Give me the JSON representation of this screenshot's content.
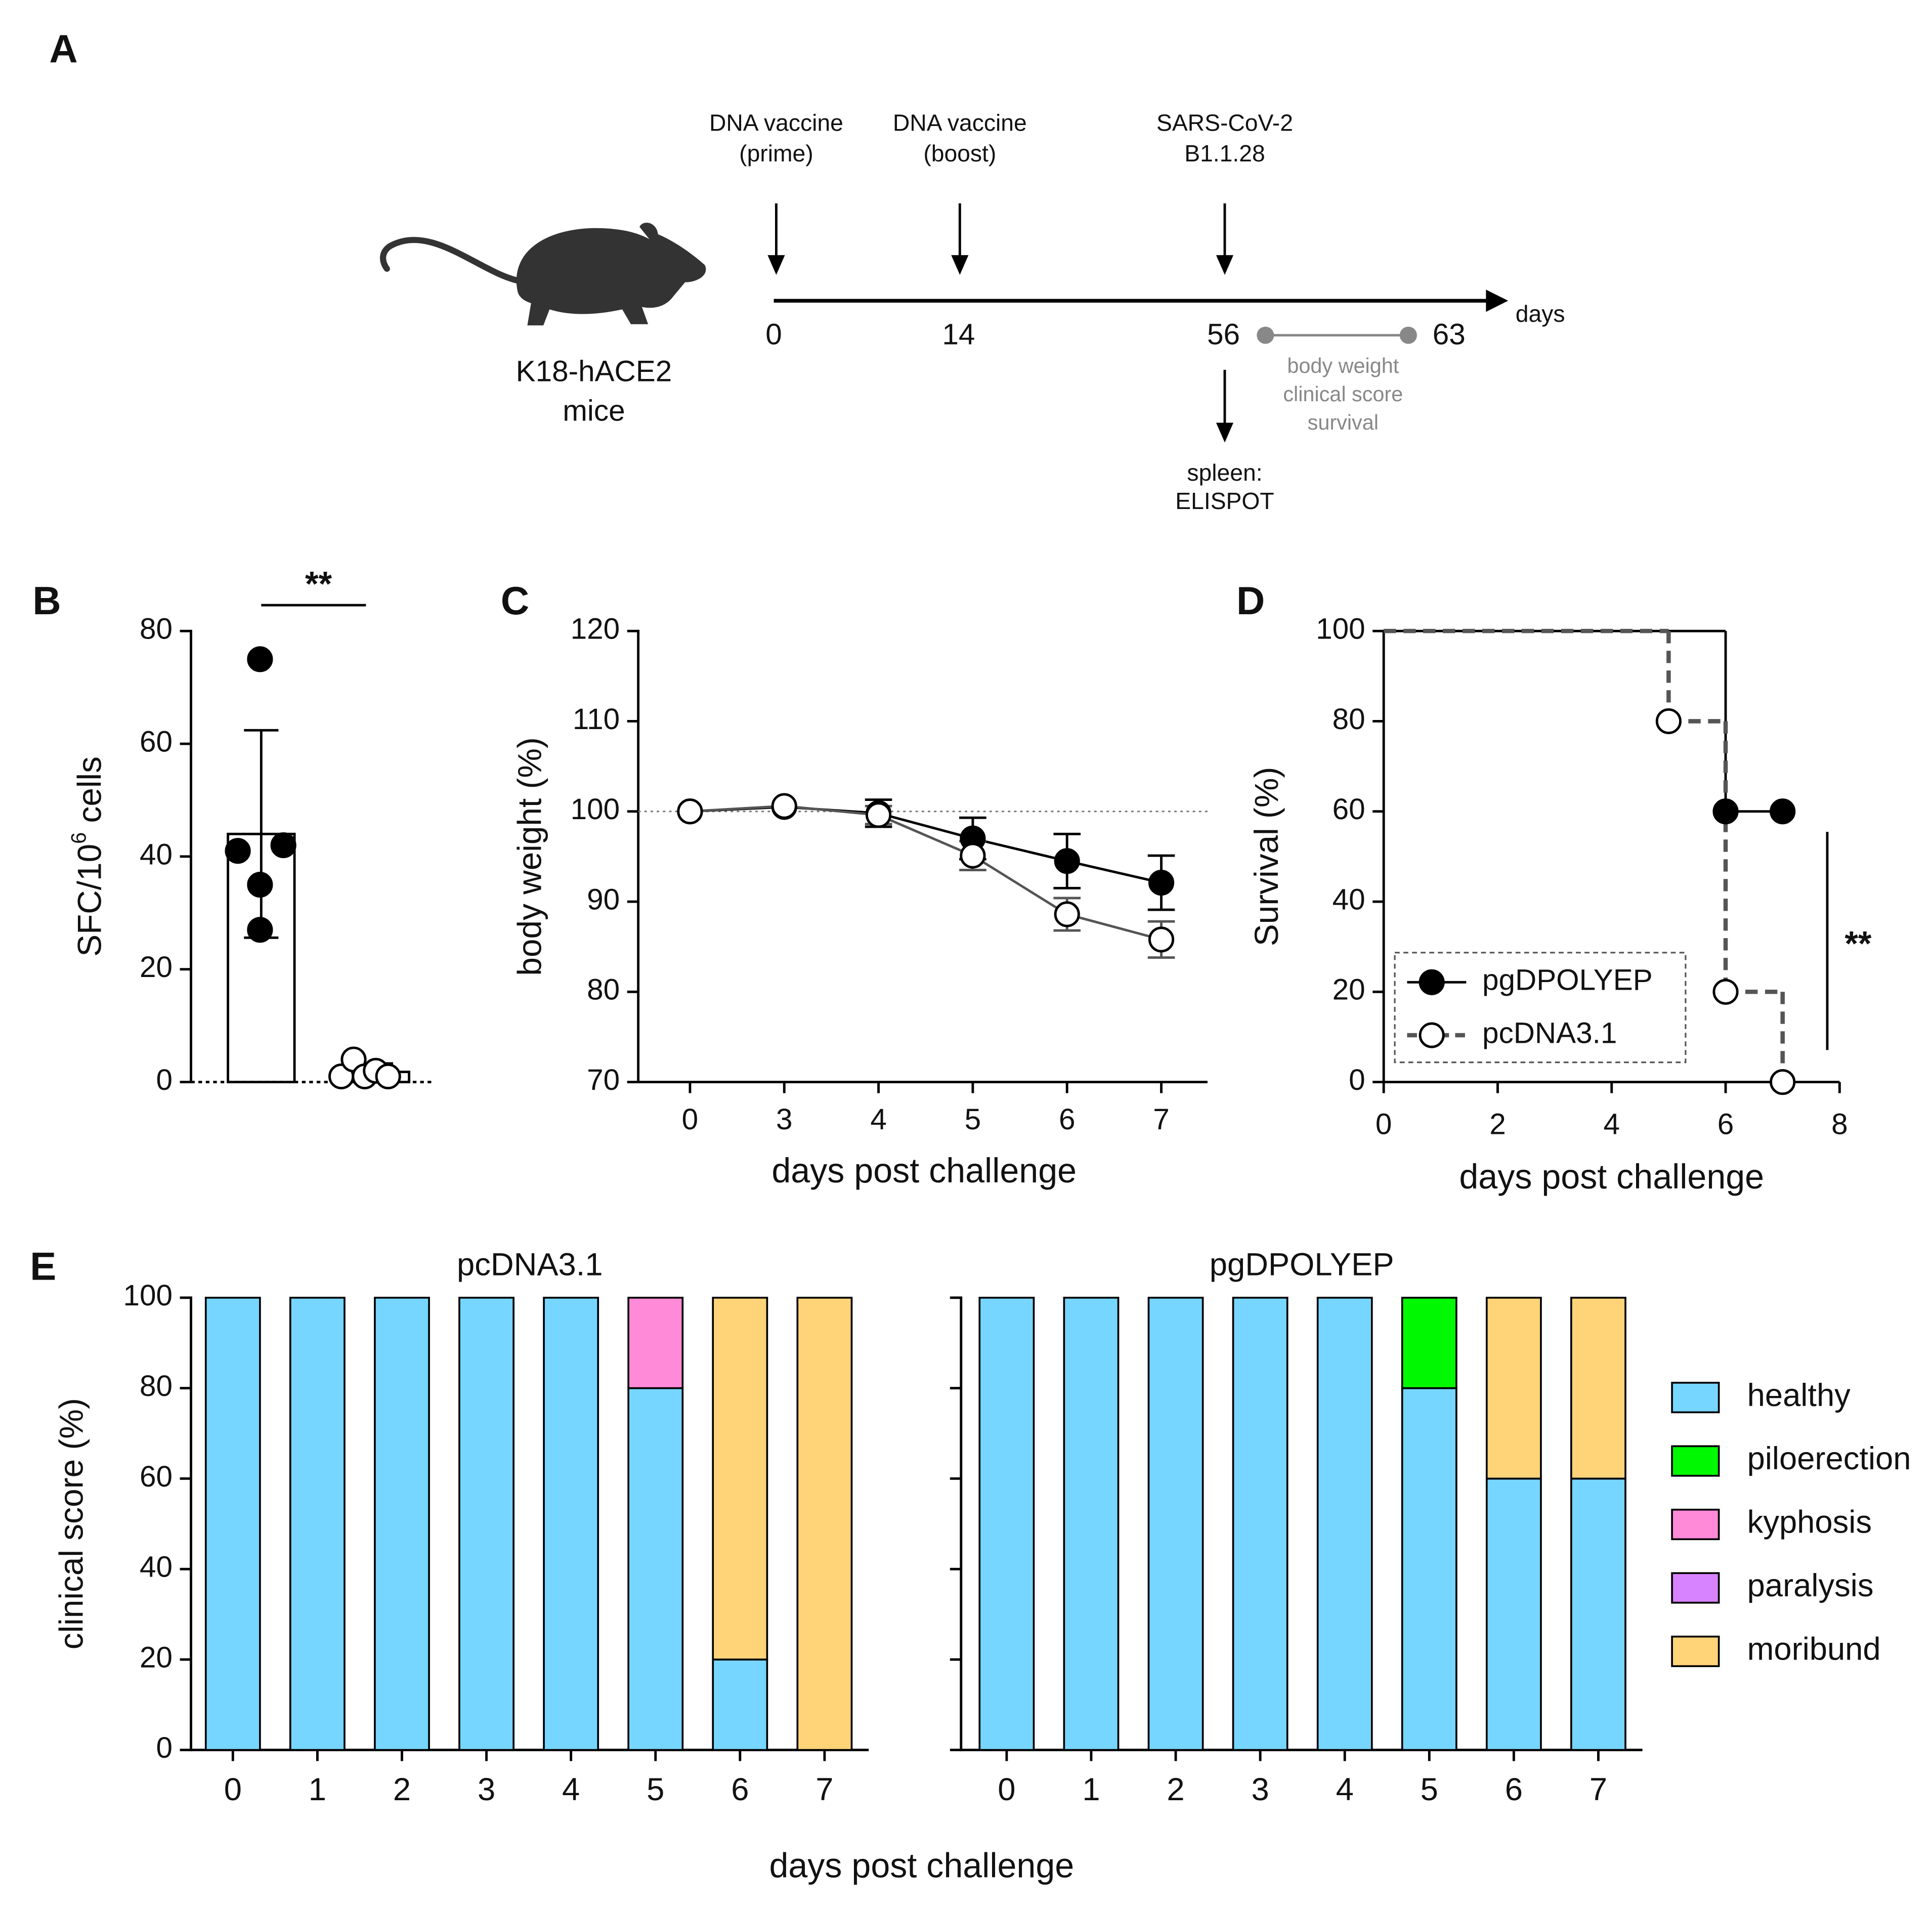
{
  "diagram": {
    "panel": "A",
    "events": [
      {
        "label": [
          "DNA vaccine",
          "(prime)"
        ]
      },
      {
        "label": [
          "DNA vaccine",
          "(boost)"
        ]
      },
      {
        "label": [
          "SARS-CoV-2",
          "B1.1.28"
        ]
      }
    ],
    "days": [
      0,
      14,
      56,
      63
    ],
    "axis_label": "days",
    "mouse_label": [
      "K18-hACE2",
      "mice"
    ],
    "monitoring": [
      "body weight",
      "clinical score",
      "survival"
    ],
    "endpoint": [
      "spleen:",
      "ELISPOT"
    ]
  },
  "chart_data": [
    {
      "panel": "B",
      "type": "bar",
      "ylabel": [
        "SFC/10",
        "6",
        " cells"
      ],
      "categories": [
        null,
        null
      ],
      "values": [
        44,
        1.8
      ],
      "errors": [
        18.4,
        1.5
      ],
      "points": [
        [
          41,
          75,
          35,
          27,
          42
        ],
        [
          1,
          4,
          1,
          2,
          1
        ]
      ],
      "point_colors": [
        "#000000",
        "#ffffff"
      ],
      "ylim": [
        0,
        80
      ],
      "yticks": [
        0,
        20,
        40,
        60,
        80
      ],
      "annotation": "**"
    },
    {
      "panel": "C",
      "type": "line",
      "xlabel": "days post challenge",
      "ylabel": "body weight (%)",
      "categories": [
        "0",
        "3",
        "4",
        "5",
        "6",
        "7"
      ],
      "series": [
        {
          "color": "#000000",
          "marker_fill": "#000000",
          "values": [
            100,
            100.5,
            99.8,
            97,
            94.5,
            92.1
          ],
          "errors": [
            0,
            0,
            1.5,
            2.3,
            3,
            3
          ]
        },
        {
          "color": "#555555",
          "marker_fill": "#ffffff",
          "values": [
            100,
            100.6,
            99.6,
            95.1,
            88.6,
            85.8
          ],
          "errors": [
            0,
            0,
            1,
            1.6,
            1.8,
            2
          ]
        }
      ],
      "ylim": [
        70,
        120
      ],
      "yticks": [
        70,
        80,
        90,
        100,
        110,
        120
      ],
      "refline": 100
    },
    {
      "panel": "D",
      "type": "step",
      "xlabel": "days post challenge",
      "ylabel": "Survival (%)",
      "series": [
        {
          "name": "pgDPOLYEP",
          "color": "#000000",
          "marker_fill": "#000000",
          "dashed": false,
          "x": [
            0,
            6,
            7
          ],
          "values": [
            100,
            60,
            60
          ]
        },
        {
          "name": "pcDNA3.1",
          "color": "#555555",
          "marker_fill": "#ffffff",
          "dashed": true,
          "x": [
            0,
            5,
            6,
            7
          ],
          "values": [
            100,
            80,
            20,
            0
          ]
        }
      ],
      "xlim": [
        0,
        8
      ],
      "xticks": [
        0,
        2,
        4,
        6,
        8
      ],
      "ylim": [
        0,
        100
      ],
      "yticks": [
        0,
        20,
        40,
        60,
        80,
        100
      ],
      "legend": "lower left",
      "annotation": "**"
    },
    {
      "panel": "E",
      "type": "stacked_bar",
      "title": "pcDNA3.1",
      "xlabel": "days post challenge",
      "ylabel": "clinical score (%)",
      "categories": [
        0,
        1,
        2,
        3,
        4,
        5,
        6,
        7
      ],
      "series": [
        {
          "color": "#76d6ff",
          "values": [
            100,
            100,
            100,
            100,
            100,
            80,
            20,
            0
          ]
        },
        {
          "color": "#00f900",
          "values": [
            0,
            0,
            0,
            0,
            0,
            0,
            0,
            0
          ]
        },
        {
          "color": "#ff8ad8",
          "values": [
            0,
            0,
            0,
            0,
            0,
            20,
            0,
            0
          ]
        },
        {
          "color": "#d783ff",
          "values": [
            0,
            0,
            0,
            0,
            0,
            0,
            0,
            0
          ]
        },
        {
          "color": "#ffd479",
          "values": [
            0,
            0,
            0,
            0,
            0,
            0,
            80,
            100
          ]
        }
      ],
      "ylim": [
        0,
        100
      ],
      "yticks": [
        0,
        20,
        40,
        60,
        80,
        100
      ]
    },
    {
      "type": "stacked_bar",
      "title": "pgDPOLYEP",
      "categories": [
        0,
        1,
        2,
        3,
        4,
        5,
        6,
        7
      ],
      "series": [
        {
          "name": "healthy",
          "color": "#76d6ff",
          "values": [
            100,
            100,
            100,
            100,
            100,
            80,
            60,
            60
          ]
        },
        {
          "name": "piloerection",
          "color": "#00f900",
          "values": [
            0,
            0,
            0,
            0,
            0,
            20,
            0,
            0
          ]
        },
        {
          "name": "kyphosis",
          "color": "#ff8ad8",
          "values": [
            0,
            0,
            0,
            0,
            0,
            0,
            0,
            0
          ]
        },
        {
          "name": "paralysis",
          "color": "#d783ff",
          "values": [
            0,
            0,
            0,
            0,
            0,
            0,
            0,
            0
          ]
        },
        {
          "name": "moribund",
          "color": "#ffd479",
          "values": [
            0,
            0,
            0,
            0,
            0,
            0,
            40,
            40
          ]
        }
      ],
      "ylim": [
        0,
        100
      ],
      "legend": "right"
    }
  ]
}
